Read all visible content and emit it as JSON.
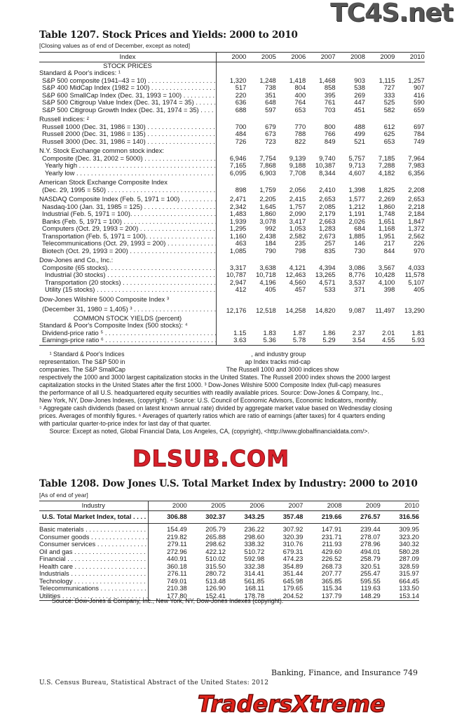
{
  "watermarks": {
    "top": "TC4S.net",
    "middle": "DLSUB.COM",
    "bottom": "TradersXtreme.com"
  },
  "table1207": {
    "title": "Table 1207. Stock Prices and Yields: 2000 to 2010",
    "subtitle": "[Closing values as of end of December, except as noted]",
    "header": [
      "Index",
      "2000",
      "2005",
      "2006",
      "2007",
      "2008",
      "2009",
      "2010"
    ],
    "rows": [
      {
        "type": "sec",
        "label": "STOCK PRICES"
      },
      {
        "type": "group",
        "label": "Standard & Poor's indices: ¹"
      },
      {
        "type": "row",
        "indent": 1,
        "label": "S&P 500 composite (1941–43 = 10)",
        "values": [
          "1,320",
          "1,248",
          "1,418",
          "1,468",
          "903",
          "1,115",
          "1,257"
        ]
      },
      {
        "type": "row",
        "indent": 1,
        "label": "S&P 400 MidCap Index (1982 = 100)",
        "values": [
          "517",
          "738",
          "804",
          "858",
          "538",
          "727",
          "907"
        ]
      },
      {
        "type": "row",
        "indent": 1,
        "label": "S&P 600 SmallCap Index (Dec. 31, 1993 = 100)",
        "values": [
          "220",
          "351",
          "400",
          "395",
          "269",
          "333",
          "416"
        ]
      },
      {
        "type": "row",
        "indent": 1,
        "label": "S&P 500 Citigroup Value Index (Dec. 31, 1974 = 35)",
        "values": [
          "636",
          "648",
          "764",
          "761",
          "447",
          "525",
          "590"
        ]
      },
      {
        "type": "row",
        "indent": 1,
        "label": "S&P 500 Citigroup Growth Index (Dec. 31, 1974 = 35)",
        "values": [
          "688",
          "597",
          "653",
          "703",
          "451",
          "582",
          "659"
        ]
      },
      {
        "type": "group",
        "gap": true,
        "label": "Russell indices: ²"
      },
      {
        "type": "row",
        "indent": 1,
        "label": "Russell 1000 (Dec. 31, 1986 = 130)",
        "values": [
          "700",
          "679",
          "770",
          "800",
          "488",
          "612",
          "697"
        ]
      },
      {
        "type": "row",
        "indent": 1,
        "label": "Russell 2000 (Dec. 31, 1986 = 135)",
        "values": [
          "484",
          "673",
          "788",
          "766",
          "499",
          "625",
          "784"
        ]
      },
      {
        "type": "row",
        "indent": 1,
        "label": "Russell 3000 (Dec. 31, 1986 = 140)",
        "values": [
          "726",
          "723",
          "822",
          "849",
          "521",
          "653",
          "749"
        ]
      },
      {
        "type": "group",
        "gap": true,
        "label": "N.Y. Stock Exchange common stock index:"
      },
      {
        "type": "row",
        "indent": 1,
        "label": "Composite (Dec. 31, 2002 = 5000)",
        "values": [
          "6,946",
          "7,754",
          "9,139",
          "9,740",
          "5,757",
          "7,185",
          "7,964"
        ]
      },
      {
        "type": "row",
        "indent": 2,
        "label": "Yearly high",
        "values": [
          "7,165",
          "7,868",
          "9,188",
          "10,387",
          "9,713",
          "7,288",
          "7,983"
        ]
      },
      {
        "type": "row",
        "indent": 2,
        "label": "Yearly low",
        "values": [
          "6,095",
          "6,903",
          "7,708",
          "8,344",
          "4,607",
          "4,182",
          "6,356"
        ]
      },
      {
        "type": "group",
        "gap": true,
        "label": "American Stock Exchange Composite Index"
      },
      {
        "type": "row",
        "indent": 1,
        "label": "(Dec. 29, 1995 = 550)",
        "values": [
          "898",
          "1,759",
          "2,056",
          "2,410",
          "1,398",
          "1,825",
          "2,208"
        ]
      },
      {
        "type": "row",
        "indent": 0,
        "gap": true,
        "label": "NASDAQ Composite Index (Feb. 5, 1971 = 100)",
        "values": [
          "2,471",
          "2,205",
          "2,415",
          "2,653",
          "1,577",
          "2,269",
          "2,653"
        ]
      },
      {
        "type": "row",
        "indent": 1,
        "label": "Nasdaq-100 (Jan. 31, 1985 = 125)",
        "values": [
          "2,342",
          "1,645",
          "1,757",
          "2,085",
          "1,212",
          "1,860",
          "2,218"
        ]
      },
      {
        "type": "row",
        "indent": 1,
        "label": "Industrial (Feb. 5, 1971 = 100).",
        "values": [
          "1,483",
          "1,860",
          "2,090",
          "2,179",
          "1,191",
          "1,748",
          "2,184"
        ]
      },
      {
        "type": "row",
        "indent": 1,
        "label": "Banks (Feb. 5, 1971 = 100)",
        "values": [
          "1,939",
          "3,078",
          "3,417",
          "2,663",
          "2,026",
          "1,651",
          "1,847"
        ]
      },
      {
        "type": "row",
        "indent": 1,
        "label": "Computers (Oct. 29, 1993 = 200)",
        "values": [
          "1,295",
          "992",
          "1,053",
          "1,283",
          "684",
          "1,168",
          "1,372"
        ]
      },
      {
        "type": "row",
        "indent": 1,
        "label": "Transportation (Feb. 5, 1971 = 100).",
        "values": [
          "1,160",
          "2,438",
          "2,582",
          "2,673",
          "1,885",
          "1,951",
          "2,562"
        ]
      },
      {
        "type": "row",
        "indent": 1,
        "label": "Telecommunications (Oct. 29, 1993 = 200)",
        "values": [
          "463",
          "184",
          "235",
          "257",
          "146",
          "217",
          "226"
        ]
      },
      {
        "type": "row",
        "indent": 1,
        "label": "Biotech (Oct. 29, 1993 = 200)",
        "values": [
          "1,085",
          "790",
          "798",
          "835",
          "730",
          "844",
          "970"
        ]
      },
      {
        "type": "group",
        "gap": true,
        "label": "Dow-Jones and Co., Inc.:"
      },
      {
        "type": "row",
        "indent": 1,
        "label": "Composite (65 stocks).",
        "values": [
          "3,317",
          "3,638",
          "4,121",
          "4,394",
          "3,086",
          "3,567",
          "4,033"
        ]
      },
      {
        "type": "row",
        "indent": 2,
        "label": "Industrial (30 stocks)",
        "values": [
          "10,787",
          "10,718",
          "12,463",
          "13,265",
          "8,776",
          "10,428",
          "11,578"
        ]
      },
      {
        "type": "row",
        "indent": 2,
        "label": "Transportation (20 stocks)",
        "values": [
          "2,947",
          "4,196",
          "4,560",
          "4,571",
          "3,537",
          "4,100",
          "5,107"
        ]
      },
      {
        "type": "row",
        "indent": 2,
        "label": "Utility (15 stocks)",
        "values": [
          "412",
          "405",
          "457",
          "533",
          "371",
          "398",
          "405"
        ]
      },
      {
        "type": "group",
        "gap": true,
        "label": "Dow-Jones Wilshire 5000 Composite Index ³"
      },
      {
        "type": "row",
        "indent": 1,
        "tall": true,
        "label": "(December 31, 1980 = 1,405) ³",
        "values": [
          "12,176",
          "12,518",
          "14,258",
          "14,820",
          "9,087",
          "11,497",
          "13,290"
        ]
      },
      {
        "type": "sec",
        "label": "COMMON STOCK YIELDS (percent)"
      },
      {
        "type": "group",
        "label": "Standard & Poor's Composite Index (500 stocks): ⁴"
      },
      {
        "type": "row",
        "indent": 1,
        "label": "Dividend-price ratio ⁵",
        "values": [
          "1.15",
          "1.83",
          "1.87",
          "1.86",
          "2.37",
          "2.01",
          "1.81"
        ]
      },
      {
        "type": "row",
        "indent": 1,
        "last": true,
        "label": "Earnings-price ratio ⁶",
        "values": [
          "3.63",
          "5.36",
          "5.78",
          "5.29",
          "3.54",
          "4.55",
          "5.93"
        ]
      }
    ],
    "footnotes": [
      "      ¹ Standard & Poor's Indices                                                                          , and industry group",
      "representation. The S&P 500 in                                                                      ap Index tracks mid-cap",
      "companies. The S&P SmallCap                                                           The Russell 1000 and 3000 indices show",
      "respectively the 1000 and 3000 largest capitalization stocks in the United States. The Russell 2000 index shows the 2000 largest",
      "capitalization stocks in the United States after the first 1000. ³ Dow-Jones Wilshire 5000 Composite Index (full-cap) measures",
      "the performance of all U.S. headquartered equity securities with readily available prices. Source: Dow-Jones & Company, Inc.,",
      "New York, NY, Dow-Jones Indexes, (copyright). ⁴ Source: U.S. Council of Economic Advisors, Economic Indicators, monthly.",
      "⁵ Aggregate cash dividends (based on latest known annual rate) divided by aggregate market value based on Wednesday closing",
      "prices. Averages of monthly figures. ⁶ Averages of quarterly ratios which are ratio of earnings (after taxes) for 4 quarters ending",
      "with particular quarter-to-price index for last day of that quarter.",
      "      Source: Except as noted, Global Financial Data, Los Angeles, CA, (copyright), <http://www.globalfinancialdata.com/>."
    ]
  },
  "table1208": {
    "title": "Table 1208. Dow Jones U.S. Total Market Index by Industry: 2000 to 2010",
    "subtitle": "[As of end of year]",
    "header": [
      "Industry",
      "2000",
      "2005",
      "2006",
      "2007",
      "2008",
      "2009",
      "2010"
    ],
    "total": {
      "label": "U.S. Total Market Index, total",
      "values": [
        "306.88",
        "302.37",
        "343.25",
        "357.48",
        "219.66",
        "276.57",
        "316.56"
      ]
    },
    "rows": [
      {
        "label": "Basic materials",
        "values": [
          "154.49",
          "205.79",
          "236.22",
          "307.92",
          "147.91",
          "239.44",
          "309.95"
        ]
      },
      {
        "label": "Consumer goods",
        "values": [
          "219.82",
          "265.88",
          "298.60",
          "320.39",
          "231.71",
          "278.07",
          "323.20"
        ]
      },
      {
        "label": "Consumer services",
        "values": [
          "279.11",
          "298.62",
          "338.32",
          "310.76",
          "211.93",
          "278.96",
          "340.32"
        ]
      },
      {
        "label": "Oil and gas",
        "values": [
          "272.96",
          "422.12",
          "510.72",
          "679.31",
          "429.60",
          "494.01",
          "580.28"
        ]
      },
      {
        "label": "Financial",
        "values": [
          "440.91",
          "510.02",
          "592.98",
          "474.23",
          "226.52",
          "258.79",
          "287.09"
        ]
      },
      {
        "label": "Health care",
        "values": [
          "360.18",
          "315.50",
          "332.38",
          "354.89",
          "268.73",
          "320.51",
          "328.59"
        ]
      },
      {
        "label": "Industrials",
        "values": [
          "276.11",
          "280.72",
          "314.41",
          "351.44",
          "207.77",
          "255.47",
          "315.97"
        ]
      },
      {
        "label": "Technology",
        "values": [
          "749.01",
          "513.48",
          "561.85",
          "645.98",
          "365.85",
          "595.55",
          "664.45"
        ]
      },
      {
        "label": "Telecommunications",
        "values": [
          "210.38",
          "126.90",
          "168.11",
          "179.65",
          "115.34",
          "119.63",
          "133.50"
        ]
      },
      {
        "label": "Utilities",
        "values": [
          "177.80",
          "152.41",
          "178.78",
          "204.52",
          "137.79",
          "148.29",
          "153.14"
        ]
      }
    ],
    "source": "Source: Dow-Jones & Company, Inc., New York, NY, Dow-Jones Indexes (copyright)."
  },
  "footer": {
    "section": "Banking, Finance, and Insurance  749",
    "publication": "U.S. Census Bureau, Statistical Abstract of the United States: 2012"
  }
}
